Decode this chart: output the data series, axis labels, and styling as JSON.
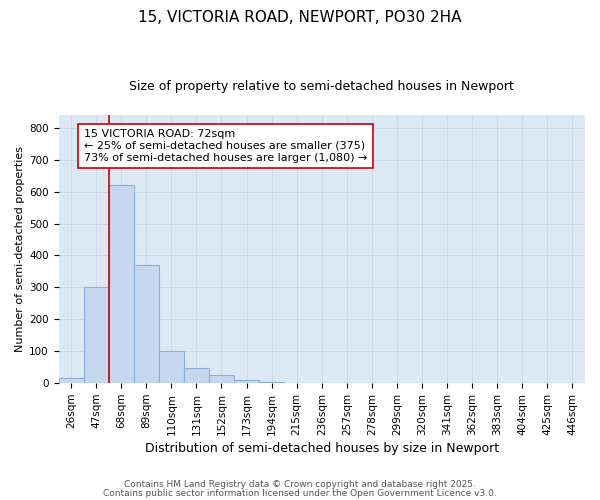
{
  "title1": "15, VICTORIA ROAD, NEWPORT, PO30 2HA",
  "title2": "Size of property relative to semi-detached houses in Newport",
  "xlabel": "Distribution of semi-detached houses by size in Newport",
  "ylabel": "Number of semi-detached properties",
  "categories": [
    "26sqm",
    "47sqm",
    "68sqm",
    "89sqm",
    "110sqm",
    "131sqm",
    "152sqm",
    "173sqm",
    "194sqm",
    "215sqm",
    "236sqm",
    "257sqm",
    "278sqm",
    "299sqm",
    "320sqm",
    "341sqm",
    "362sqm",
    "383sqm",
    "404sqm",
    "425sqm",
    "446sqm"
  ],
  "values": [
    15,
    302,
    620,
    370,
    100,
    47,
    25,
    10,
    3,
    0,
    0,
    0,
    0,
    0,
    0,
    0,
    0,
    0,
    0,
    0,
    0
  ],
  "bar_color": "#c5d8f0",
  "bar_edgecolor": "#8ab0d8",
  "property_line_color": "#cc0000",
  "property_line_x": 2,
  "annotation_text": "15 VICTORIA ROAD: 72sqm\n← 25% of semi-detached houses are smaller (375)\n73% of semi-detached houses are larger (1,080) →",
  "annotation_box_edgecolor": "#cc0000",
  "annotation_fontsize": 8,
  "ylim": [
    0,
    840
  ],
  "yticks": [
    0,
    100,
    200,
    300,
    400,
    500,
    600,
    700,
    800
  ],
  "grid_color": "#c8d8e8",
  "background_color": "#dce8f4",
  "plot_bg_color": "#dce8f4",
  "footer1": "Contains HM Land Registry data © Crown copyright and database right 2025.",
  "footer2": "Contains public sector information licensed under the Open Government Licence v3.0.",
  "title1_fontsize": 11,
  "title2_fontsize": 9,
  "xlabel_fontsize": 9,
  "ylabel_fontsize": 8,
  "tick_fontsize": 7.5,
  "footer_fontsize": 6.5,
  "fig_width": 6.0,
  "fig_height": 5.0,
  "fig_dpi": 100
}
